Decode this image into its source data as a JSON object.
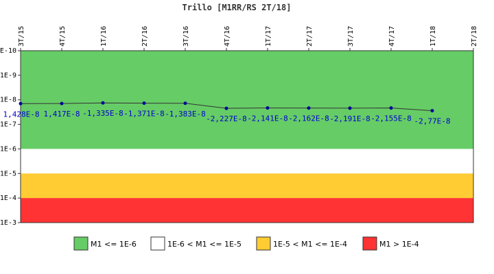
{
  "chart_data": {
    "type": "line",
    "title": "Trillo [M1RR/RS 2T/18]",
    "categories": [
      "3T/15",
      "4T/15",
      "1T/16",
      "2T/16",
      "3T/16",
      "4T/16",
      "1T/17",
      "2T/17",
      "3T/17",
      "4T/17",
      "1T/18",
      "2T/18"
    ],
    "y_scale": "log",
    "y_range": [
      1e-10,
      0.001
    ],
    "y_axis_inverted": true,
    "y_ticks": [
      {
        "value": 1e-10,
        "label": "1E-10"
      },
      {
        "value": 1e-09,
        "label": "1E-9"
      },
      {
        "value": 1e-08,
        "label": "1E-8"
      },
      {
        "value": 1e-07,
        "label": "1E-7"
      },
      {
        "value": 1e-06,
        "label": "1E-6"
      },
      {
        "value": 1e-05,
        "label": "1E-5"
      },
      {
        "value": 0.0001,
        "label": "1E-4"
      },
      {
        "value": 0.001,
        "label": "1E-3"
      }
    ],
    "bands": [
      {
        "from": 1e-10,
        "to": 1e-06,
        "color": "#66cc66",
        "label": "M1 <= 1E-6"
      },
      {
        "from": 1e-06,
        "to": 1e-05,
        "color": "#ffffff",
        "label": "1E-6 < M1 <= 1E-5"
      },
      {
        "from": 1e-05,
        "to": 0.0001,
        "color": "#ffcc33",
        "label": "1E-5 < M1 <= 1E-4"
      },
      {
        "from": 0.0001,
        "to": 0.001,
        "color": "#ff3333",
        "label": "M1 > 1E-4"
      }
    ],
    "points": [
      {
        "category": "3T/15",
        "y": 1.428e-08,
        "label": "1,428E-8"
      },
      {
        "category": "4T/15",
        "y": 1.417e-08,
        "label": "1,417E-8"
      },
      {
        "category": "1T/16",
        "y": -1.335e-08,
        "label": "-1,335E-8"
      },
      {
        "category": "2T/16",
        "y": -1.371e-08,
        "label": "-1,371E-8"
      },
      {
        "category": "3T/16",
        "y": -1.383e-08,
        "label": "-1,383E-8"
      },
      {
        "category": "4T/16",
        "y": -2.227e-08,
        "label": "-2,227E-8"
      },
      {
        "category": "1T/17",
        "y": -2.141e-08,
        "label": "-2,141E-8"
      },
      {
        "category": "2T/17",
        "y": -2.162e-08,
        "label": "-2,162E-8"
      },
      {
        "category": "3T/17",
        "y": -2.191e-08,
        "label": "-2,191E-8"
      },
      {
        "category": "4T/17",
        "y": -2.155e-08,
        "label": "-2,155E-8"
      },
      {
        "category": "1T/18",
        "y": -2.77e-08,
        "label": "-2,77E-8"
      }
    ],
    "line_color": "#333333",
    "marker_color": "#000099",
    "label_color": "#0000cc",
    "grid": false,
    "legend_position": "bottom"
  }
}
